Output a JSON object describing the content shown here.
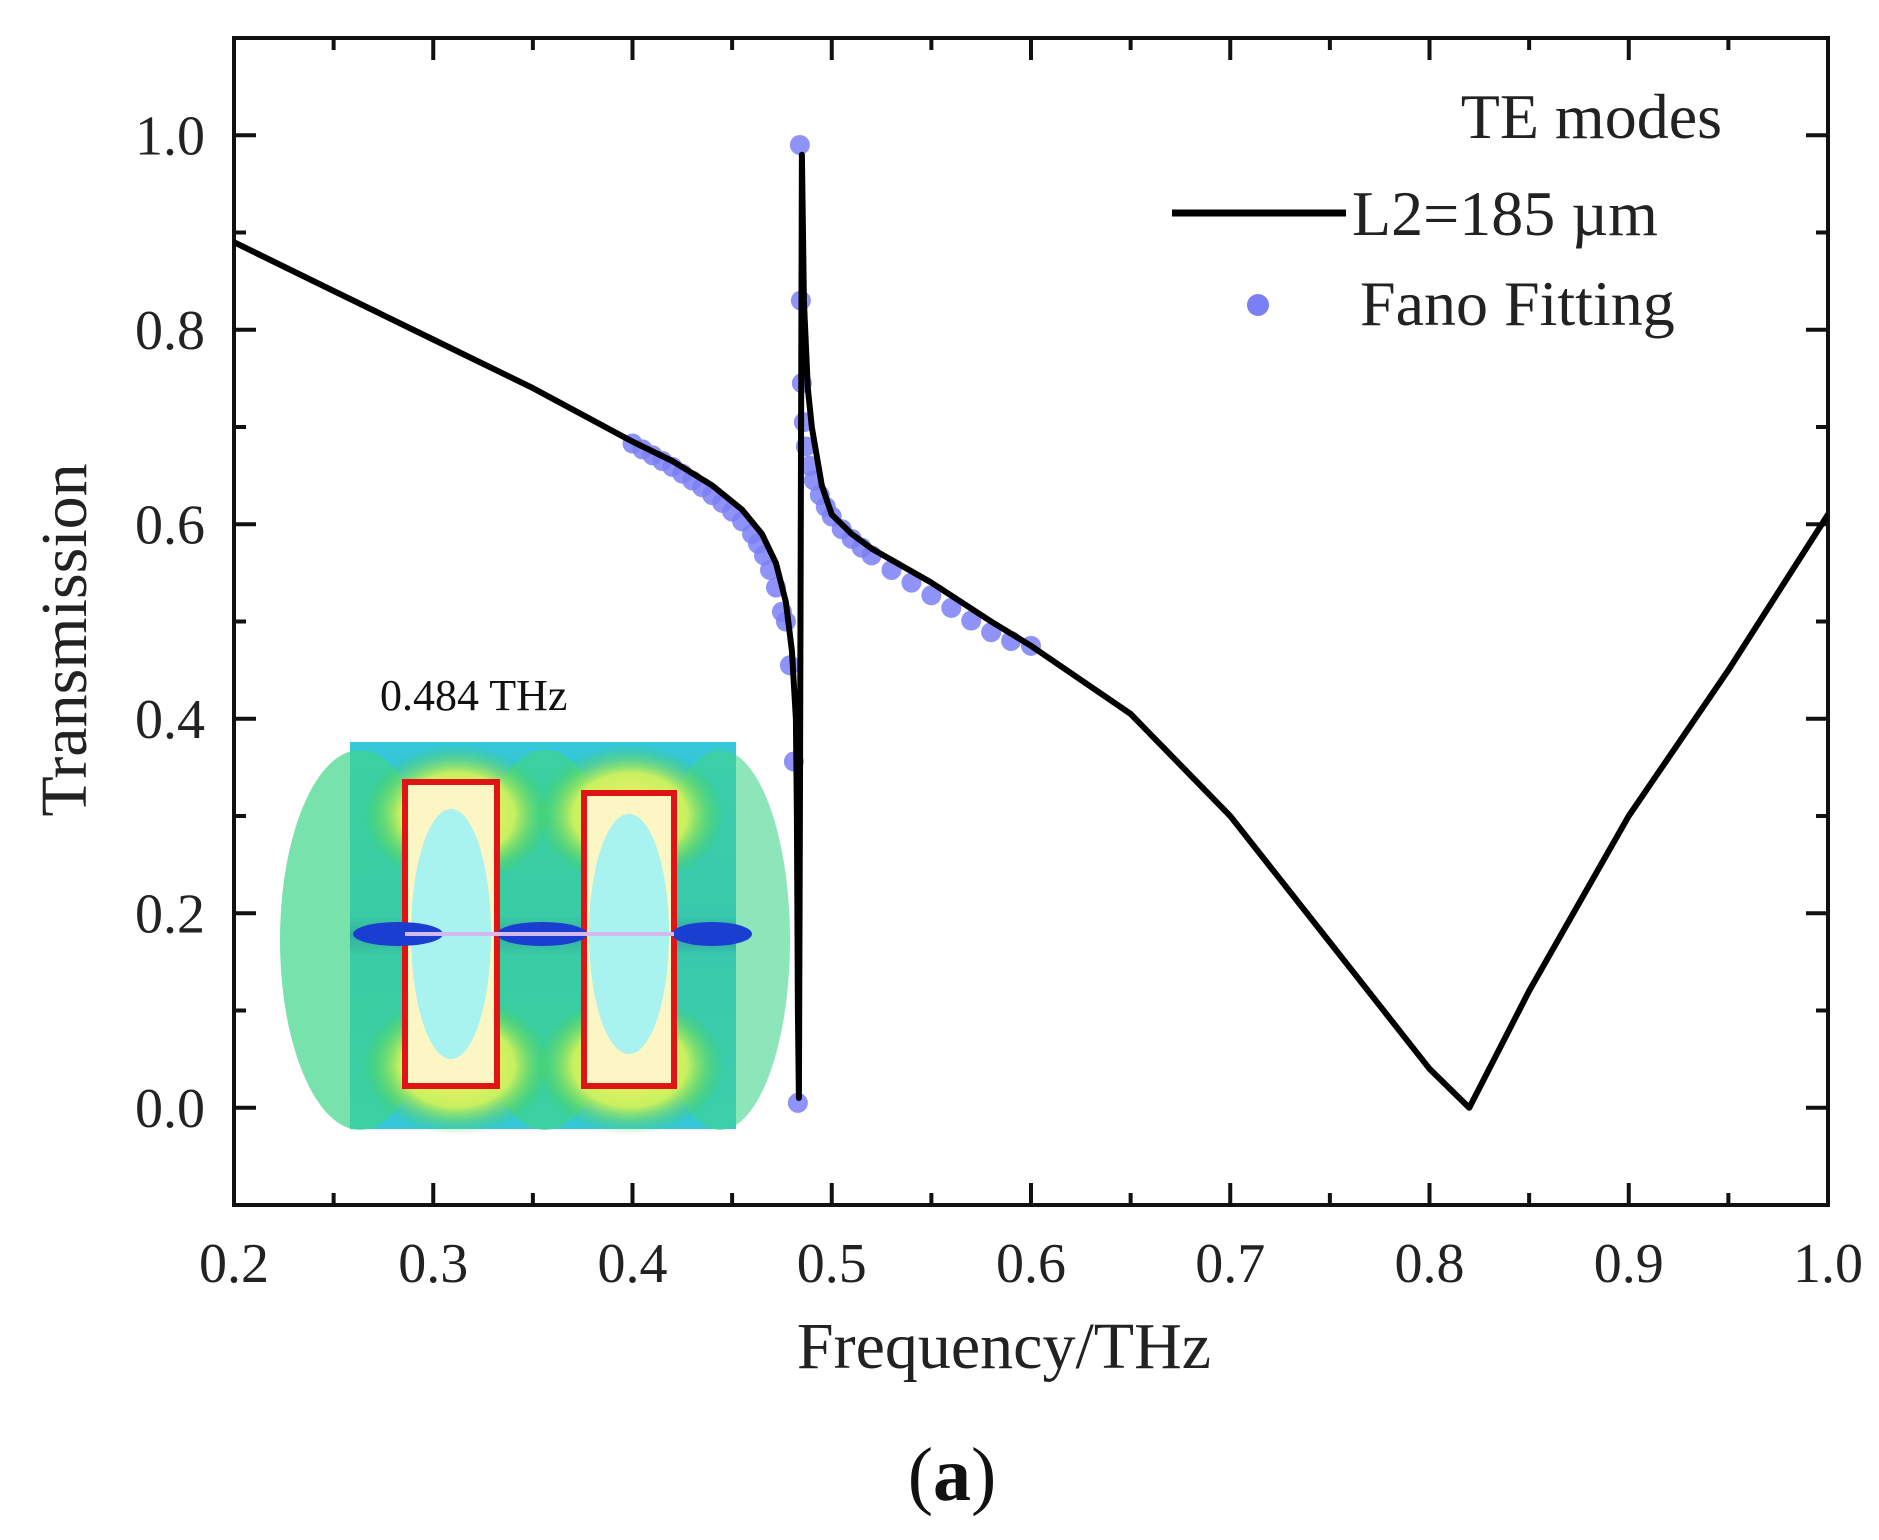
{
  "chart_data": {
    "type": "line",
    "title": "",
    "panel_label": "(a)",
    "panel_letter": "a",
    "xlabel": "Frequency/THz",
    "ylabel": "Transmission",
    "xlim": [
      0.2,
      1.0
    ],
    "ylim": [
      -0.1,
      1.1
    ],
    "xticks": [
      "0.2",
      "0.3",
      "0.4",
      "0.5",
      "0.6",
      "0.7",
      "0.8",
      "0.9",
      "1.0"
    ],
    "xtick_values": [
      0.2,
      0.3,
      0.4,
      0.5,
      0.6,
      0.7,
      0.8,
      0.9,
      1.0
    ],
    "yticks": [
      "0.0",
      "0.2",
      "0.4",
      "0.6",
      "0.8",
      "1.0"
    ],
    "ytick_values": [
      0.0,
      0.2,
      0.4,
      0.6,
      0.8,
      1.0
    ],
    "legend": {
      "title": "TE modes",
      "entries": [
        "L2=185 µm",
        "Fano Fitting"
      ],
      "position": "top-right"
    },
    "series": [
      {
        "name": "L2=185 µm",
        "style": "line",
        "color": "#000000",
        "x": [
          0.2,
          0.25,
          0.3,
          0.35,
          0.4,
          0.42,
          0.44,
          0.455,
          0.465,
          0.472,
          0.477,
          0.48,
          0.482,
          0.4825,
          0.483,
          0.4835,
          0.484,
          0.485,
          0.486,
          0.488,
          0.49,
          0.495,
          0.5,
          0.51,
          0.52,
          0.55,
          0.58,
          0.6,
          0.65,
          0.7,
          0.75,
          0.8,
          0.82,
          0.85,
          0.9,
          0.95,
          1.0
        ],
        "y": [
          0.89,
          0.84,
          0.79,
          0.74,
          0.685,
          0.665,
          0.64,
          0.615,
          0.59,
          0.56,
          0.52,
          0.47,
          0.4,
          0.3,
          0.1,
          0.01,
          0.3,
          0.98,
          0.83,
          0.74,
          0.7,
          0.64,
          0.61,
          0.59,
          0.575,
          0.54,
          0.5,
          0.475,
          0.405,
          0.3,
          0.17,
          0.04,
          0.0,
          0.12,
          0.3,
          0.45,
          0.61
        ]
      },
      {
        "name": "Fano Fitting",
        "style": "scatter",
        "color": "#7b7ff5",
        "x": [
          0.4,
          0.405,
          0.41,
          0.415,
          0.42,
          0.425,
          0.43,
          0.435,
          0.44,
          0.445,
          0.45,
          0.455,
          0.46,
          0.463,
          0.466,
          0.469,
          0.472,
          0.475,
          0.477,
          0.479,
          0.481,
          0.483,
          0.484,
          0.4845,
          0.485,
          0.486,
          0.487,
          0.489,
          0.491,
          0.494,
          0.497,
          0.5,
          0.505,
          0.51,
          0.515,
          0.52,
          0.53,
          0.54,
          0.55,
          0.56,
          0.57,
          0.58,
          0.59,
          0.6
        ],
        "y": [
          0.683,
          0.677,
          0.671,
          0.665,
          0.659,
          0.652,
          0.645,
          0.638,
          0.63,
          0.622,
          0.613,
          0.603,
          0.59,
          0.58,
          0.568,
          0.553,
          0.535,
          0.51,
          0.5,
          0.455,
          0.356,
          0.005,
          0.99,
          0.83,
          0.745,
          0.705,
          0.68,
          0.66,
          0.645,
          0.63,
          0.618,
          0.608,
          0.595,
          0.585,
          0.576,
          0.568,
          0.553,
          0.54,
          0.527,
          0.514,
          0.501,
          0.489,
          0.48,
          0.475
        ]
      }
    ],
    "inset": {
      "label": "0.484 THz",
      "description_type": "field-map"
    },
    "grid": false
  }
}
